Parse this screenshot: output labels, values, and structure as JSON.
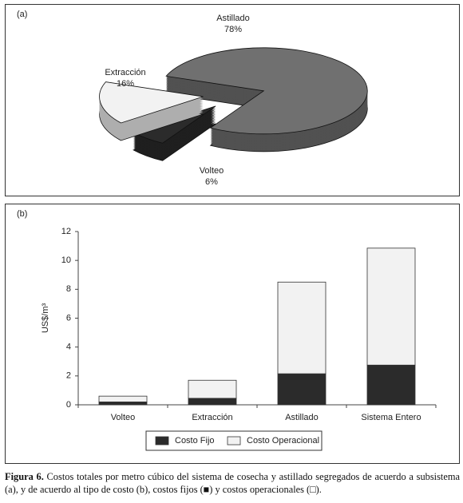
{
  "chart_data": [
    {
      "type": "pie",
      "panel": "(a)",
      "categories": [
        "Astillado",
        "Volteo",
        "Extracción"
      ],
      "values": [
        78,
        6,
        16
      ],
      "value_labels": [
        "78%",
        "6%",
        "16%"
      ],
      "colors": [
        "#707070",
        "#2b2b2b",
        "#f2f2f2"
      ]
    },
    {
      "type": "bar",
      "panel": "(b)",
      "stacked": true,
      "ylabel": "US$/m³",
      "categories": [
        "Volteo",
        "Extracción",
        "Astillado",
        "Sistema Entero"
      ],
      "series": [
        {
          "name": "Costo Fijo",
          "color": "#2b2b2b",
          "values": [
            0.2,
            0.45,
            2.15,
            2.75
          ]
        },
        {
          "name": "Costo Operacional",
          "color": "#f2f2f2",
          "values": [
            0.4,
            1.25,
            6.35,
            8.1
          ]
        }
      ],
      "ylim": [
        0,
        12
      ],
      "yticks": [
        0,
        2,
        4,
        6,
        8,
        10,
        12
      ],
      "legend": "bottom"
    }
  ],
  "caption": {
    "label": "Figura 6.",
    "text": "Costos totales por metro cúbico del sistema de cosecha y astillado segregados de acuerdo a subsistema (a), y de acuerdo al tipo de costo (b), costos fijos (■) y costos operacionales (□)."
  }
}
